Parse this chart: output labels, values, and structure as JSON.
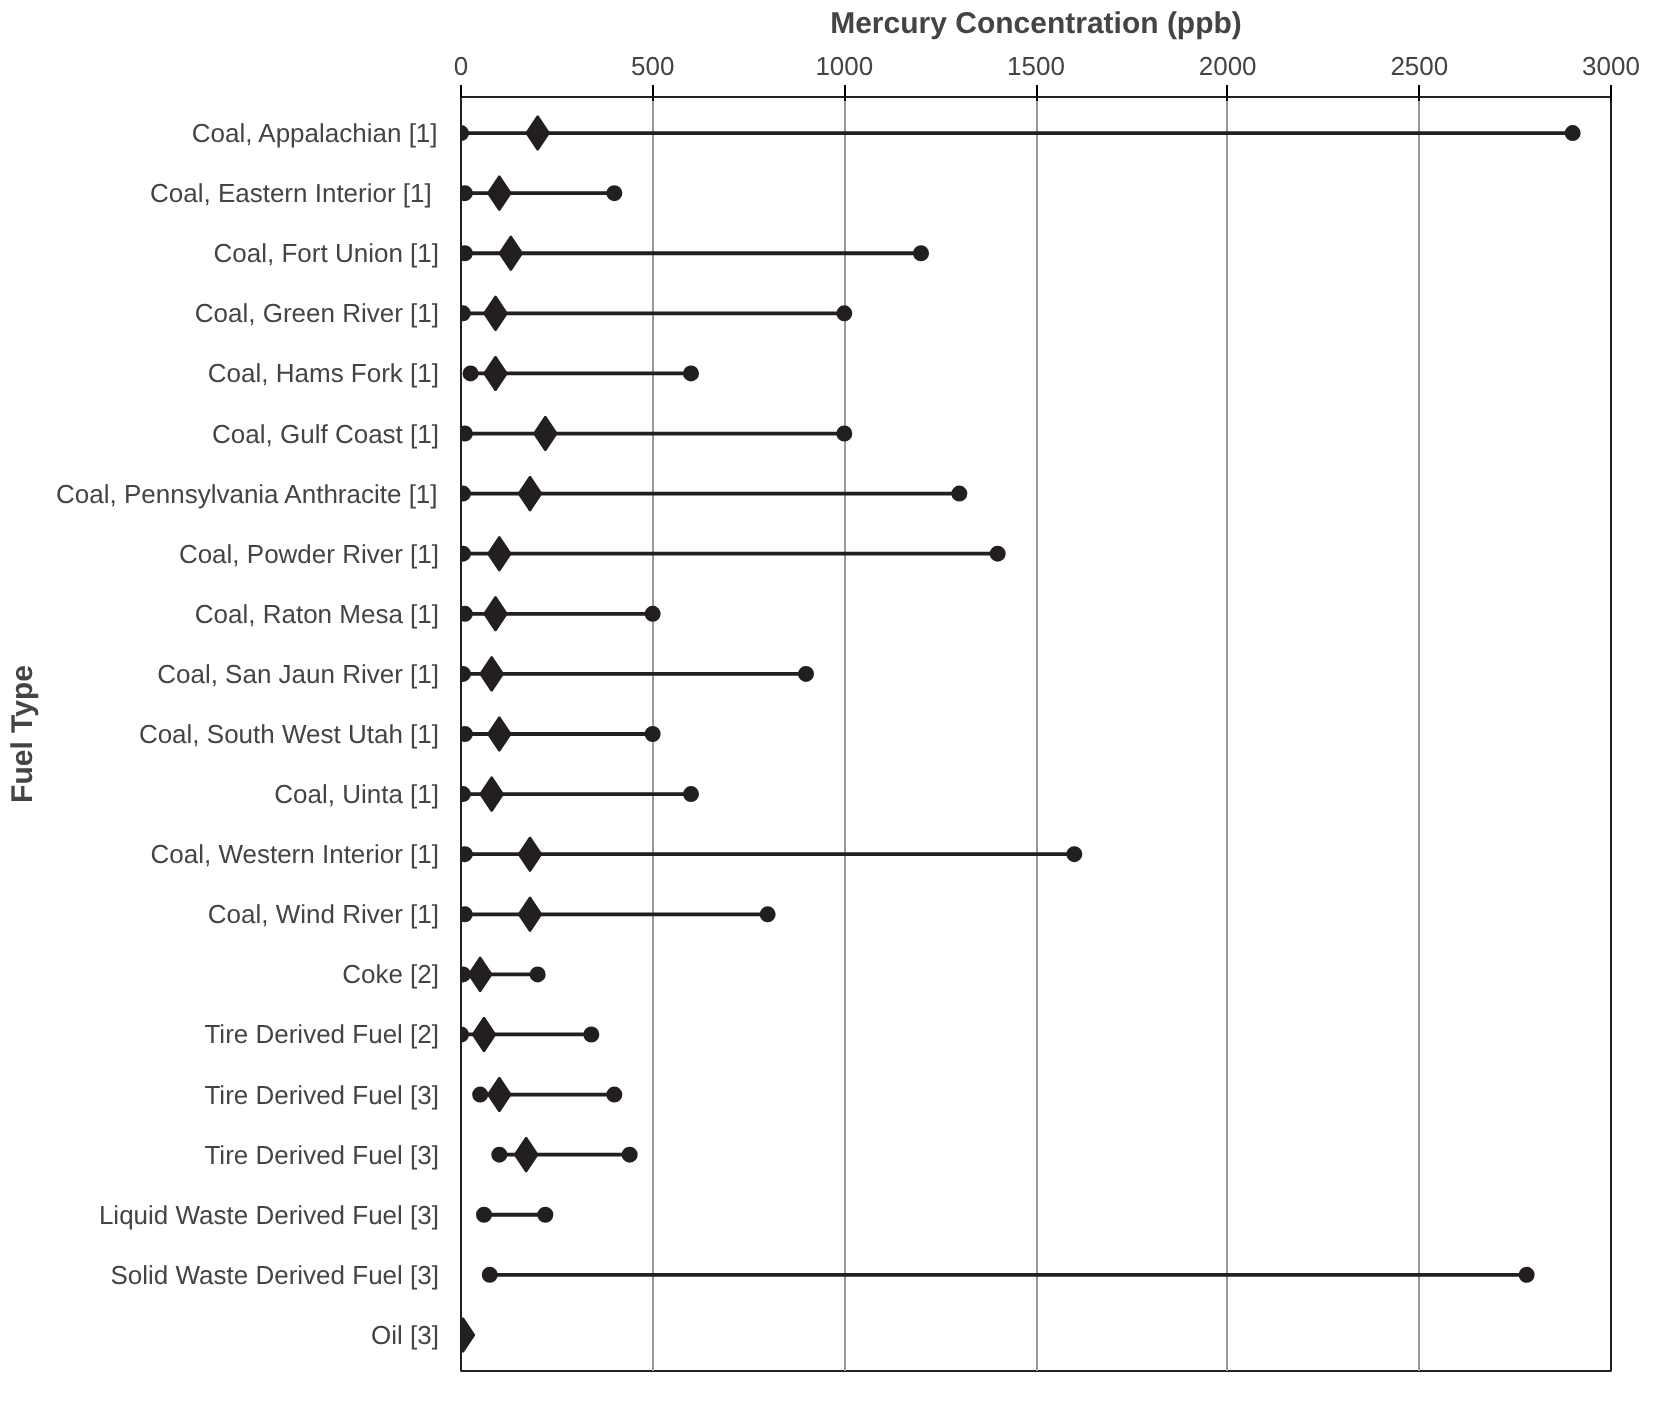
{
  "chart_data": {
    "type": "bar",
    "orientation": "horizontal",
    "xlabel": "Mercury Concentration (ppb)",
    "ylabel": "Fuel Type",
    "categories": [
      "Coal, Appalachian [1]",
      "Coal, Eastern Interior  [1]",
      "Coal, Fort Union [1]",
      "Coal, Green River [1]",
      "Coal, Hams Fork [1]",
      "Coal, Gulf Coast [1]",
      "Coal, Pennsylvania Anthracite [1]",
      "Coal, Powder River [1]",
      "Coal, Raton Mesa [1]",
      "Coal, San Jaun River [1]",
      "Coal, South West Utah [1]",
      "Coal, Uinta [1]",
      "Coal, Western Interior [1]",
      "Coal, Wind River [1]",
      "Coke [2]",
      "Tire Derived Fuel [2]",
      "Tire Derived Fuel [3]",
      "Tire Derived Fuel [3]",
      "Liquid Waste Derived Fuel [3]",
      "Solid Waste Derived Fuel [3]",
      "Oil [3]"
    ],
    "series": [
      {
        "type": "scatter",
        "marker": "circle",
        "color": "#231f20",
        "values": [
          0,
          10,
          10,
          5,
          25,
          10,
          5,
          5,
          10,
          5,
          10,
          5,
          10,
          10,
          5,
          0,
          50,
          100,
          60,
          75,
          null
        ]
      },
      {
        "type": "scatter",
        "marker": "circle",
        "color": "#231f20",
        "values": [
          2900,
          400,
          1200,
          1000,
          600,
          1000,
          1300,
          1400,
          500,
          900,
          500,
          600,
          1600,
          800,
          200,
          340,
          400,
          440,
          220,
          2780,
          null
        ]
      },
      {
        "color": "#231f20",
        "base": [
          0,
          10,
          10,
          5,
          25,
          10,
          5,
          5,
          10,
          5,
          10,
          5,
          10,
          10,
          5,
          0,
          50,
          100,
          60,
          75,
          null
        ],
        "values": [
          2900,
          390,
          1190,
          995,
          575,
          990,
          1295,
          1395,
          490,
          895,
          490,
          595,
          1590,
          790,
          195,
          340,
          350,
          340,
          160,
          2705,
          null
        ]
      },
      {
        "type": "scatter",
        "marker": "diamond",
        "color": "#231f20",
        "values": [
          200,
          100,
          130,
          90,
          90,
          220,
          180,
          100,
          90,
          80,
          100,
          80,
          180,
          180,
          50,
          60,
          100,
          170,
          null,
          null,
          5
        ]
      }
    ],
    "xlim": [
      0,
      3000
    ],
    "xticks": [
      0,
      500,
      1000,
      1500,
      2000,
      2500,
      3000
    ],
    "grid": "x"
  }
}
